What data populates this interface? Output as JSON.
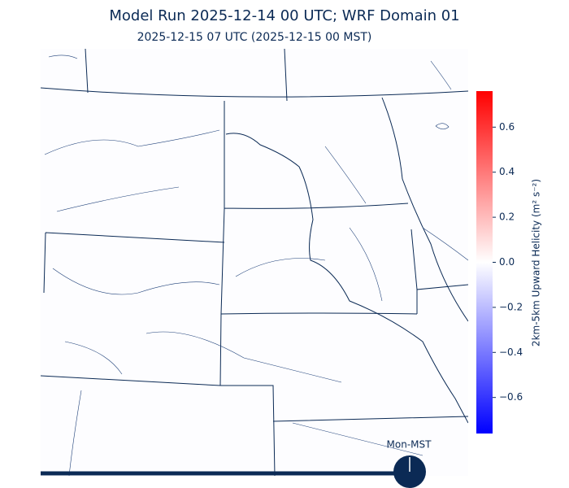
{
  "header": {
    "title": "Model Run 2025-12-14 00 UTC; WRF Domain 01",
    "subtitle": "2025-12-15 07 UTC  (2025-12-15 00 MST)"
  },
  "colorbar": {
    "label": "2km-5km Upward Helicity (m² s⁻²)",
    "lim": [
      -0.76,
      0.76
    ],
    "ticks": [
      {
        "value": -0.6,
        "label": "−0.6"
      },
      {
        "value": -0.4,
        "label": "−0.4"
      },
      {
        "value": -0.2,
        "label": "−0.2"
      },
      {
        "value": 0,
        "label": "0.0"
      },
      0.2,
      0.4,
      0.6
    ],
    "colors": [
      "#0000ff",
      "#ffffff",
      "#ff0000"
    ]
  },
  "timeline": {
    "label": "Mon-MST"
  }
}
